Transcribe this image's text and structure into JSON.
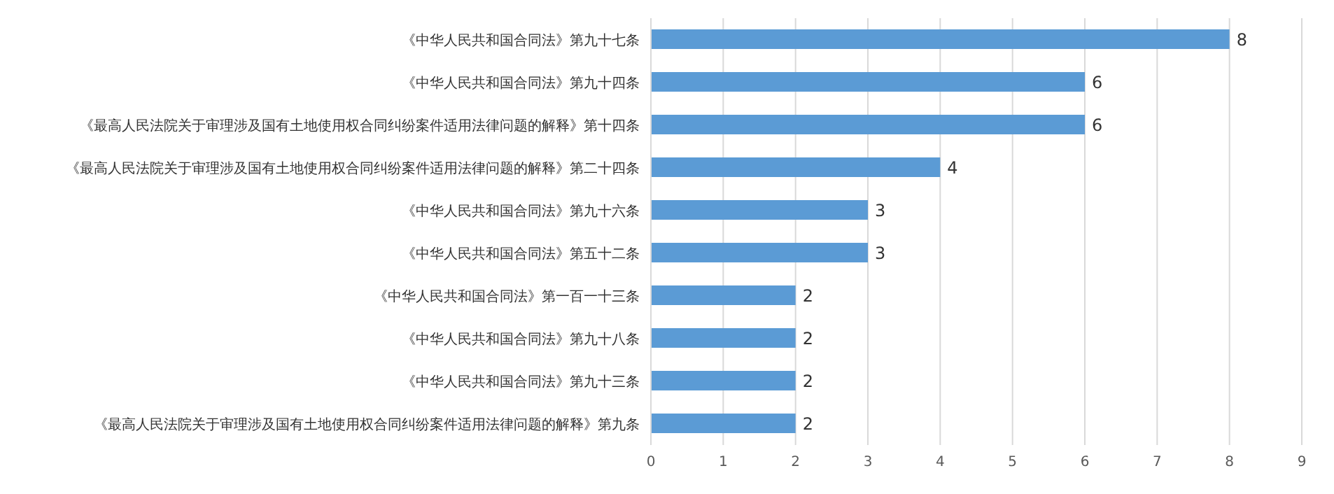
{
  "chart_data": {
    "type": "bar",
    "orientation": "horizontal",
    "categories": [
      "《中华人民共和国合同法》第九十七条",
      "《中华人民共和国合同法》第九十四条",
      "《最高人民法院关于审理涉及国有土地使用权合同纠纷案件适用法律问题的解释》第十四条",
      "《最高人民法院关于审理涉及国有土地使用权合同纠纷案件适用法律问题的解释》第二十四条",
      "《中华人民共和国合同法》第九十六条",
      "《中华人民共和国合同法》第五十二条",
      "《中华人民共和国合同法》第一百一十三条",
      "《中华人民共和国合同法》第九十八条",
      "《中华人民共和国合同法》第九十三条",
      "《最高人民法院关于审理涉及国有土地使用权合同纠纷案件适用法律问题的解释》第九条"
    ],
    "values": [
      8,
      6,
      6,
      4,
      3,
      3,
      2,
      2,
      2,
      2
    ],
    "color": "#5b9bd5",
    "xlim": [
      0,
      9
    ],
    "xticks": [
      0,
      1,
      2,
      3,
      4,
      5,
      6,
      7,
      8,
      9
    ],
    "grid": "x",
    "data_labels": true
  }
}
